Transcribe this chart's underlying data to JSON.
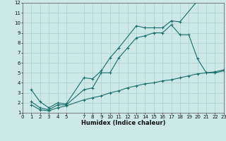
{
  "background_color": "#cce9e8",
  "grid_color": "#aacfce",
  "line_color": "#1a6e6a",
  "xlabel": "Humidex (Indice chaleur)",
  "xlim": [
    0,
    23
  ],
  "ylim": [
    1,
    12
  ],
  "yticks": [
    1,
    2,
    3,
    4,
    5,
    6,
    7,
    8,
    9,
    10,
    11,
    12
  ],
  "xticks": [
    0,
    1,
    2,
    3,
    4,
    5,
    7,
    8,
    9,
    10,
    11,
    12,
    13,
    14,
    15,
    16,
    17,
    18,
    19,
    20,
    21,
    22,
    23
  ],
  "line1_x": [
    1,
    2,
    3,
    4,
    5,
    7,
    8,
    9,
    10,
    11,
    13,
    14,
    15,
    16,
    17,
    18,
    20
  ],
  "line1_y": [
    3.3,
    2.1,
    1.5,
    2.0,
    1.9,
    4.5,
    4.4,
    5.2,
    6.5,
    7.5,
    9.7,
    9.5,
    9.5,
    9.5,
    10.2,
    10.1,
    12.2
  ],
  "line2_x": [
    1,
    2,
    3,
    4,
    5,
    7,
    8,
    9,
    10,
    11,
    12,
    13,
    14,
    15,
    16,
    17,
    18,
    19,
    20,
    21,
    22,
    23
  ],
  "line2_y": [
    2.1,
    1.5,
    1.3,
    1.8,
    1.8,
    3.3,
    3.5,
    5.0,
    5.0,
    6.5,
    7.5,
    8.5,
    8.7,
    9.0,
    9.0,
    9.8,
    8.8,
    8.8,
    6.4,
    5.0,
    5.0,
    5.2
  ],
  "line3_x": [
    1,
    2,
    3,
    4,
    5,
    7,
    8,
    9,
    10,
    11,
    12,
    13,
    14,
    15,
    16,
    17,
    18,
    19,
    20,
    21,
    22,
    23
  ],
  "line3_y": [
    1.8,
    1.3,
    1.2,
    1.5,
    1.7,
    2.3,
    2.5,
    2.7,
    3.0,
    3.2,
    3.5,
    3.7,
    3.9,
    4.0,
    4.2,
    4.3,
    4.5,
    4.7,
    4.9,
    5.0,
    5.1,
    5.3
  ],
  "ylabel_fontsize": 5,
  "xlabel_fontsize": 6,
  "tick_fontsize": 5
}
